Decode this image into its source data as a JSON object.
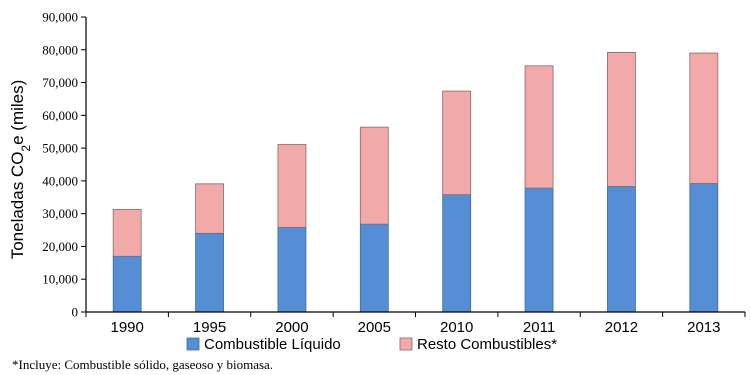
{
  "chart_data": {
    "type": "bar",
    "stacked": true,
    "categories": [
      "1990",
      "1995",
      "2000",
      "2005",
      "2010",
      "2011",
      "2012",
      "2013"
    ],
    "series": [
      {
        "name": "Combustible Líquido",
        "color": "#558ed5",
        "values": [
          17000,
          24000,
          25800,
          26800,
          35800,
          37800,
          38300,
          39200
        ]
      },
      {
        "name": "Resto Combustibles*",
        "color": "#f2a9aa",
        "values": [
          14300,
          15100,
          25300,
          29600,
          31600,
          37300,
          40900,
          39800
        ]
      }
    ],
    "ylabel_main": "Toneladas CO",
    "ylabel_sub": "2",
    "ylabel_tail": "e (miles)",
    "ylim": [
      0,
      90000
    ],
    "y_ticks": [
      "0",
      "10,000",
      "20,000",
      "30,000",
      "40,000",
      "50,000",
      "60,000",
      "70,000",
      "80,000",
      "90,000"
    ],
    "legend_position": "bottom",
    "grid": false
  },
  "footnote": "*Incluye: Combustible sólido, gaseoso y biomasa."
}
